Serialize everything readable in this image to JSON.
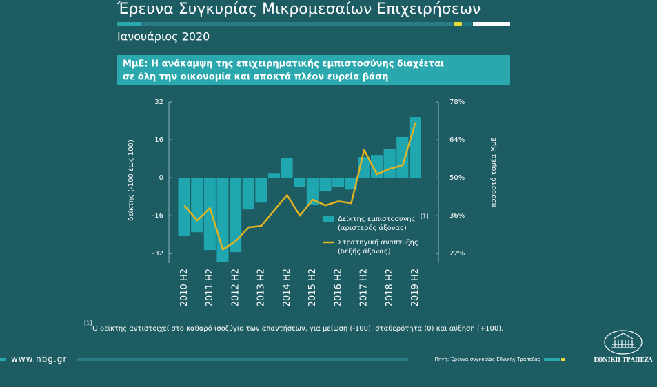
{
  "header": {
    "title": "Έρευνα Συγκυρίας Μικρομεσαίων Επιχειρήσεων",
    "subtitle": "Ιανουάριος 2020"
  },
  "banner": {
    "line1": "ΜμΕ: Η ανάκαμψη της επιχειρηματικής εμπιστοσύνης διαχέεται",
    "line2": "σε όλη την οικονομία και αποκτά πλέον ευρεία βάση"
  },
  "chart_data": {
    "type": "bar-line",
    "categories": [
      "2010 H2",
      null,
      "2011 H2",
      null,
      "2012 H2",
      null,
      "2013 H2",
      null,
      "2014 H2",
      null,
      "2015 H2",
      null,
      "2016 H2",
      null,
      "2017 H2",
      null,
      "2018 H2",
      null,
      "2019 H2"
    ],
    "series": [
      {
        "name": "Δείκτης εμπιστοσύνης",
        "note_ref": "[1]",
        "axis_label": "(αριστερός άξονας)",
        "color": "#1fa6ae",
        "values": [
          -24.7,
          -23,
          -30.5,
          -35.5,
          -31.4,
          -13.4,
          -10.5,
          2,
          8.4,
          -3.8,
          -11.3,
          -5.8,
          -3.8,
          -5,
          8.7,
          9.6,
          12.2,
          17.2,
          25.6
        ]
      },
      {
        "name": "Στρατηγική ανάπτυξης",
        "axis_label": "(δεξής άξονας)",
        "color": "#e3b422",
        "axis": "y2",
        "values": [
          39.8,
          34.2,
          38.8,
          23.5,
          26.6,
          31.7,
          32.2,
          38,
          43.6,
          36,
          41.9,
          39.8,
          41.3,
          40.6,
          60.2,
          51.3,
          53.3,
          54.6,
          70.4
        ]
      }
    ],
    "ylabel": "δείκτης (-100 έως 100)",
    "y2label": "ποσοστό τομέα ΜμΕ",
    "ylim": [
      -36,
      32
    ],
    "yticks": [
      -32,
      -16,
      0,
      16,
      32
    ],
    "y2lim": [
      18.5,
      78
    ],
    "y2ticks": [
      {
        "value": 22,
        "label": "22%"
      },
      {
        "value": 36,
        "label": "36%"
      },
      {
        "value": 50,
        "label": "50%"
      },
      {
        "value": 64,
        "label": "64%"
      },
      {
        "value": 78,
        "label": "78%"
      }
    ]
  },
  "footnote": {
    "ref": "[1]",
    "text": "Ο δείκτης αντιστοιχεί στο καθαρό ισοζύγιο των απαντήσεων, για μείωση (-100), σταθερότητα (0) και αύξηση (+100)."
  },
  "footer": {
    "url": "www.nbg.gr",
    "source": "Πηγή: Έρευνα συγκυρίας Εθνικής Τράπεζας",
    "brand": "ΕΘΝΙΚΗ ΤΡΑΠΕΖΑ"
  }
}
